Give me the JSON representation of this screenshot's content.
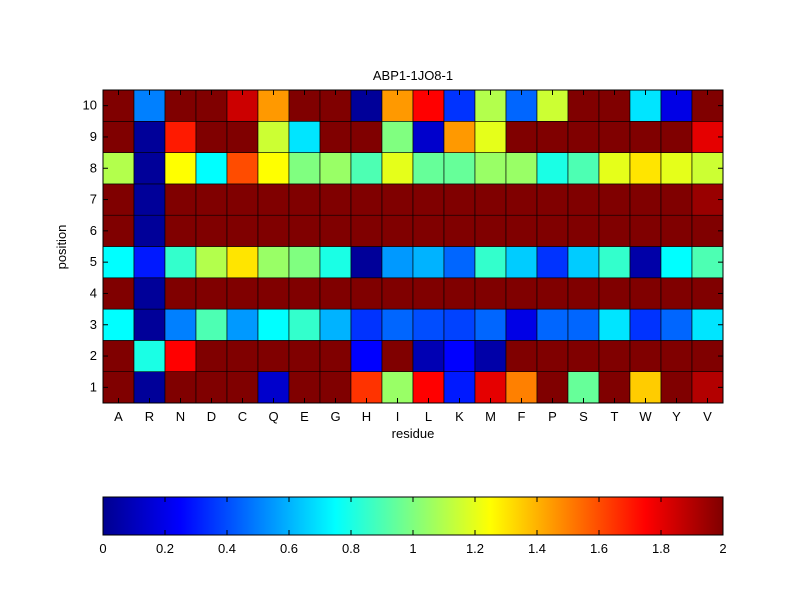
{
  "chart_data": {
    "type": "heatmap",
    "title": "ABP1-1JO8-1",
    "xlabel": "residue",
    "ylabel": "position",
    "x_categories": [
      "A",
      "R",
      "N",
      "D",
      "C",
      "Q",
      "E",
      "G",
      "H",
      "I",
      "L",
      "K",
      "M",
      "F",
      "P",
      "S",
      "T",
      "W",
      "Y",
      "V"
    ],
    "y_categories": [
      "1",
      "2",
      "3",
      "4",
      "5",
      "6",
      "7",
      "8",
      "9",
      "10"
    ],
    "value_range": [
      0,
      2
    ],
    "colormap": "jet",
    "colorbar": {
      "placement": "bottom",
      "ticks": [
        0,
        0.2,
        0.4,
        0.6,
        0.8,
        1,
        1.2,
        1.4,
        1.6,
        1.8,
        2
      ],
      "tick_labels": [
        "0",
        "0.2",
        "0.4",
        "0.6",
        "0.8",
        "1",
        "1.2",
        "1.4",
        "1.6",
        "1.8",
        "2"
      ]
    },
    "grid": false,
    "rows": [
      {
        "position": "1",
        "values": [
          2,
          0.05,
          2,
          2,
          2,
          0.15,
          2,
          2,
          1.65,
          1.05,
          1.75,
          0.3,
          1.8,
          1.5,
          2,
          0.95,
          2,
          1.35,
          2,
          1.9
        ]
      },
      {
        "position": "2",
        "values": [
          2,
          0.8,
          1.75,
          2,
          2,
          2,
          2,
          2,
          0.25,
          2,
          0.1,
          0.25,
          0.08,
          2,
          2,
          2,
          2,
          2,
          2,
          2
        ]
      },
      {
        "position": "3",
        "values": [
          0.75,
          0.05,
          0.5,
          0.9,
          0.55,
          0.75,
          0.85,
          0.6,
          0.35,
          0.45,
          0.4,
          0.38,
          0.45,
          0.2,
          0.45,
          0.45,
          0.7,
          0.35,
          0.45,
          0.7
        ]
      },
      {
        "position": "4",
        "values": [
          2,
          0.05,
          2,
          2,
          2,
          2,
          2,
          2,
          2,
          2,
          2,
          2,
          2,
          2,
          2,
          2,
          2,
          2,
          2,
          2
        ]
      },
      {
        "position": "5",
        "values": [
          0.75,
          0.3,
          0.85,
          1.1,
          1.3,
          1.05,
          1.0,
          0.8,
          0.05,
          0.55,
          0.6,
          0.45,
          0.85,
          0.65,
          0.35,
          0.65,
          0.85,
          0.08,
          0.75,
          0.9
        ]
      },
      {
        "position": "6",
        "values": [
          2,
          0.05,
          2,
          2,
          2,
          2,
          2,
          2,
          2,
          2,
          2,
          2,
          2,
          2,
          2,
          2,
          2,
          2,
          2,
          2
        ]
      },
      {
        "position": "7",
        "values": [
          2,
          0.05,
          2,
          2,
          2,
          2,
          2,
          2,
          2,
          2,
          2,
          2,
          2,
          2,
          2,
          2,
          2,
          2,
          2,
          1.95
        ]
      },
      {
        "position": "8",
        "values": [
          1.1,
          0.05,
          1.25,
          0.75,
          1.6,
          1.25,
          1.0,
          1.05,
          0.9,
          1.2,
          0.95,
          0.95,
          1.05,
          1.05,
          0.8,
          0.9,
          1.2,
          1.3,
          1.2,
          1.15
        ]
      },
      {
        "position": "9",
        "values": [
          2,
          0.05,
          1.7,
          2,
          2,
          1.15,
          0.7,
          2,
          2,
          1.0,
          0.15,
          1.45,
          1.2,
          2,
          2,
          2,
          2,
          2,
          2,
          1.8
        ]
      },
      {
        "position": "10",
        "values": [
          2,
          0.5,
          2,
          2,
          1.85,
          1.45,
          2,
          2,
          0.05,
          1.45,
          1.75,
          0.35,
          1.1,
          0.45,
          1.15,
          2,
          2,
          0.7,
          0.2,
          2
        ]
      }
    ]
  }
}
